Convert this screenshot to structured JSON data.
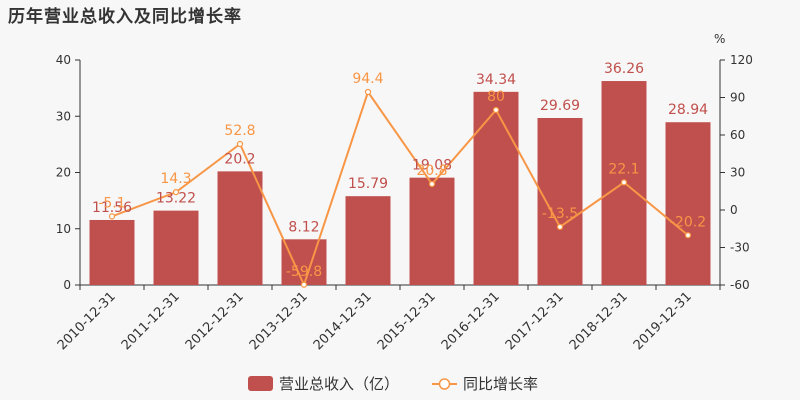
{
  "title": "历年营业总收入及同比增长率",
  "chart_data": {
    "type": "bar",
    "categories": [
      "2010-12-31",
      "2011-12-31",
      "2012-12-31",
      "2013-12-31",
      "2014-12-31",
      "2015-12-31",
      "2016-12-31",
      "2017-12-31",
      "2018-12-31",
      "2019-12-31"
    ],
    "series": [
      {
        "name": "营业总收入（亿）",
        "type": "bar",
        "axis": "left",
        "color": "#c0504d",
        "values": [
          11.56,
          13.22,
          20.2,
          8.12,
          15.79,
          19.08,
          34.34,
          29.69,
          36.26,
          28.94
        ],
        "value_labels": [
          "11.56",
          "13.22",
          "20.2",
          "8.12",
          "15.79",
          "19.08",
          "34.34",
          "29.69",
          "36.26",
          "28.94"
        ]
      },
      {
        "name": "同比增长率",
        "type": "line",
        "axis": "right",
        "color": "#f79646",
        "values": [
          -5.1,
          14.3,
          52.8,
          -59.8,
          94.4,
          20.8,
          80,
          -13.5,
          22.1,
          -20.2
        ],
        "value_labels": [
          "-5.1",
          "14.3",
          "52.8",
          "-59.8",
          "94.4",
          "20.8",
          "80",
          "-13.5",
          "22.1",
          "-20.2"
        ]
      }
    ],
    "y_left": {
      "min": 0,
      "max": 40,
      "ticks": [
        "0",
        "10",
        "20",
        "30",
        "40"
      ]
    },
    "y_right": {
      "min": -60,
      "max": 120,
      "ticks": [
        "-60",
        "-30",
        "0",
        "30",
        "60",
        "90",
        "120"
      ],
      "unit": "%"
    },
    "grid": false,
    "legend_position": "bottom"
  }
}
